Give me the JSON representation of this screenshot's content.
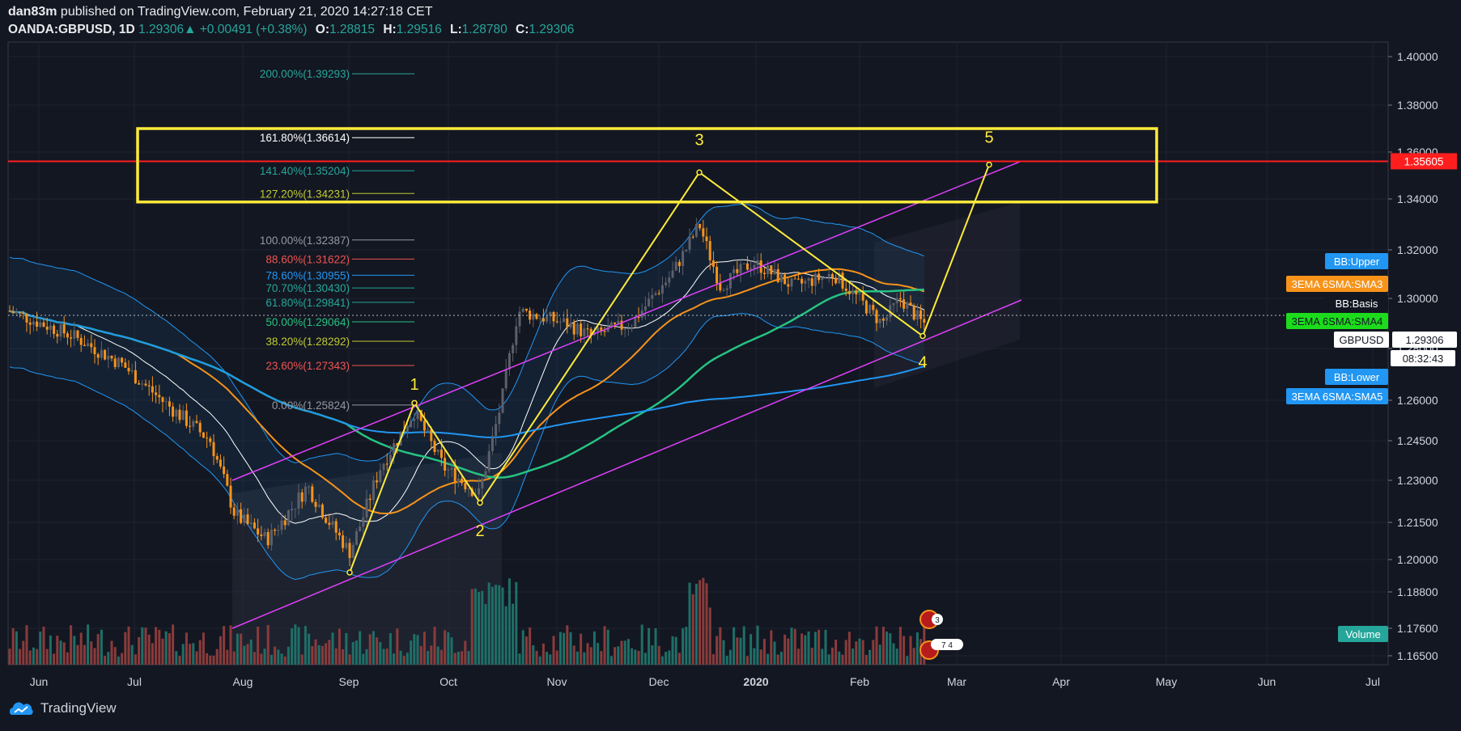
{
  "header": {
    "author": "dan83m",
    "published": "published on TradingView.com, February 21, 2020 14:27:18 CET",
    "symbol": "OANDA:GBPUSD, 1D",
    "last": "1.29306",
    "change_arrow": "▲",
    "change": "+0.00491 (+0.38%)",
    "open_label": "O:",
    "open": "1.28815",
    "high_label": "H:",
    "high": "1.29516",
    "low_label": "L:",
    "low": "1.28780",
    "close_label": "C:",
    "close": "1.29306"
  },
  "brand": {
    "name": "TradingView",
    "icon": "tradingview-cloud-icon"
  },
  "colors": {
    "background": "#131722",
    "up": "#26a69a",
    "down": "#ef5350",
    "candle_up": "#5d606b",
    "candle_down": "#f7931a",
    "sma3": "#f7931a",
    "sma4": "#26c281",
    "sma5": "#2196f3",
    "bb": "#2196f3",
    "basis": "#ffffff",
    "channel": "#e040fb",
    "wave": "#ffeb3b",
    "resistance": "#ff1e1e",
    "box": "#ffeb3b"
  },
  "chart_data": {
    "type": "candlestick",
    "y_ticks": [
      "1.40000",
      "1.38000",
      "1.36000",
      "1.34000",
      "1.32000",
      "1.30000",
      "1.28000",
      "1.26000",
      "1.24500",
      "1.23000",
      "1.21500",
      "1.20000",
      "1.18800",
      "1.17600",
      "1.16500"
    ],
    "x_ticks": [
      "Jun",
      "Jul",
      "Aug",
      "Sep",
      "Oct",
      "Nov",
      "Dec",
      "2020",
      "Feb",
      "Mar",
      "Apr",
      "May",
      "Jun",
      "Jul"
    ],
    "x_tick_bold": "2020",
    "fib_levels": [
      {
        "label": "200.00%(1.39293)",
        "value": 1.39293,
        "color": "#26a69a"
      },
      {
        "label": "161.80%(1.36614)",
        "value": 1.36614,
        "color": "#ffffff"
      },
      {
        "label": "141.40%(1.35204)",
        "value": 1.35204,
        "color": "#26a69a"
      },
      {
        "label": "127.20%(1.34231)",
        "value": 1.34231,
        "color": "#c0ca33"
      },
      {
        "label": "100.00%(1.32387)",
        "value": 1.32387,
        "color": "#9598a1"
      },
      {
        "label": "88.60%(1.31622)",
        "value": 1.31622,
        "color": "#ef5350"
      },
      {
        "label": "78.60%(1.30955)",
        "value": 1.30955,
        "color": "#2196f3"
      },
      {
        "label": "70.70%(1.30430)",
        "value": 1.3043,
        "color": "#26a69a"
      },
      {
        "label": "61.80%(1.29841)",
        "value": 1.29841,
        "color": "#26a69a"
      },
      {
        "label": "50.00%(1.29064)",
        "value": 1.29064,
        "color": "#26c281"
      },
      {
        "label": "38.20%(1.28292)",
        "value": 1.28292,
        "color": "#c0ca33"
      },
      {
        "label": "23.60%(1.27343)",
        "value": 1.27343,
        "color": "#ef5350"
      },
      {
        "label": "0.00%(1.25824)",
        "value": 1.25824,
        "color": "#9598a1"
      }
    ],
    "wave_labels": [
      "1",
      "2",
      "3",
      "4",
      "5"
    ],
    "resistance": {
      "label": "1.35605",
      "value": 1.35605
    },
    "tags": [
      {
        "text": "BB:Upper",
        "bg": "#2196f3",
        "fg": "#ffffff"
      },
      {
        "text": "3EMA 6SMA:SMA3",
        "bg": "#f7931a",
        "fg": "#ffffff"
      },
      {
        "text": "BB:Basis",
        "bg": "#131722",
        "fg": "#ffffff"
      },
      {
        "text": "3EMA 6SMA:SMA4",
        "bg": "#1cdc1c",
        "fg": "#131722"
      },
      {
        "text": "GBPUSD",
        "bg": "#ffffff",
        "fg": "#131722"
      },
      {
        "text": "1.29306",
        "bg": "#ffffff",
        "fg": "#131722"
      },
      {
        "text": "08:32:43",
        "bg": "#ffffff",
        "fg": "#131722"
      },
      {
        "text": "BB:Lower",
        "bg": "#2196f3",
        "fg": "#ffffff"
      },
      {
        "text": "3EMA 6SMA:SMA5",
        "bg": "#2196f3",
        "fg": "#ffffff"
      },
      {
        "text": "Volume",
        "bg": "#26a69a",
        "fg": "#ffffff"
      }
    ],
    "event_badges": [
      "3",
      "7",
      "4"
    ]
  }
}
